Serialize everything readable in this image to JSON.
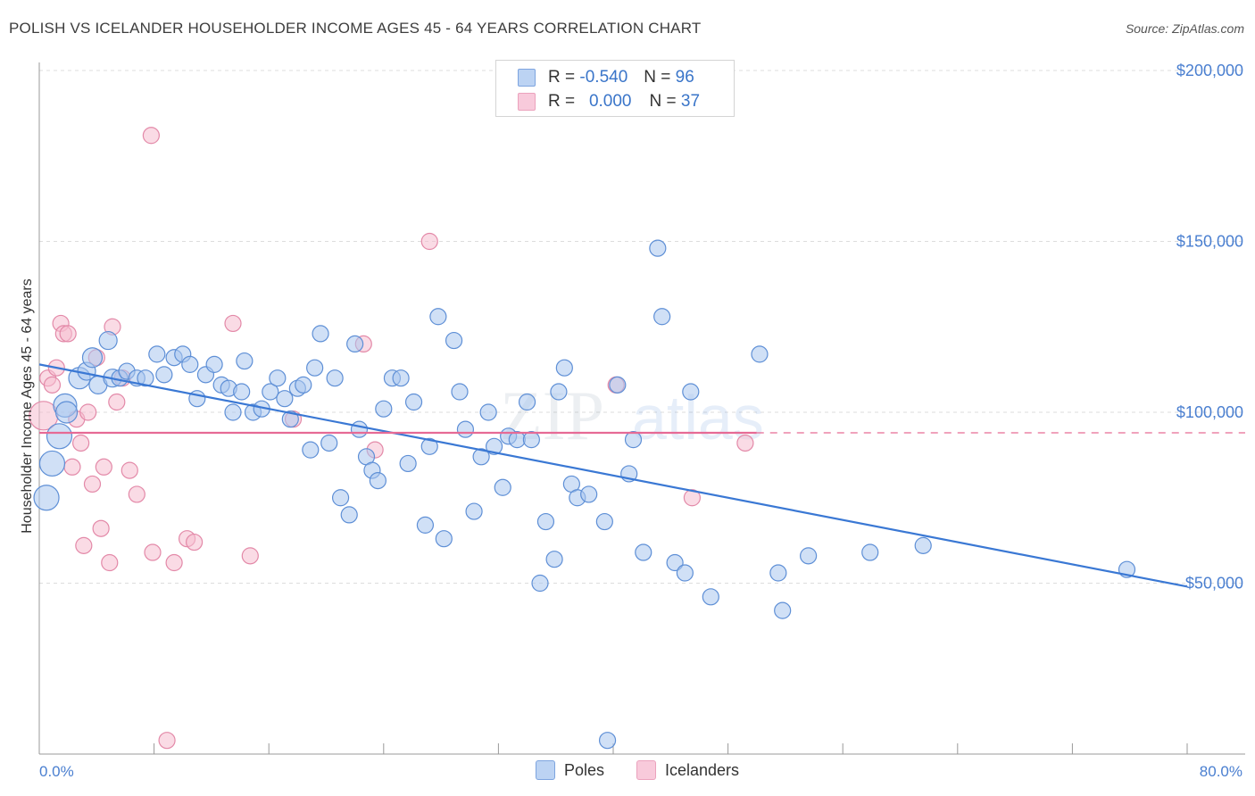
{
  "header": {
    "title": "POLISH VS ICELANDER HOUSEHOLDER INCOME AGES 45 - 64 YEARS CORRELATION CHART",
    "source_label": "Source: ZipAtlas.com"
  },
  "legend_top": {
    "rows": [
      {
        "r_label": "R =",
        "r_value": "-0.540",
        "n_label": "N =",
        "n_value": "96"
      },
      {
        "r_label": "R =",
        "r_value": "0.000",
        "n_label": "N =",
        "n_value": "37"
      }
    ]
  },
  "legend_bottom": {
    "poles": "Poles",
    "icelanders": "Icelanders"
  },
  "watermark": {
    "zip": "ZIP",
    "atlas": "atlas"
  },
  "colors": {
    "poles_fill": "#a9c6ef",
    "poles_stroke": "#5e8fd6",
    "poles_line": "#3a78d4",
    "ice_fill": "#f6bdd0",
    "ice_stroke": "#e389a8",
    "ice_line": "#e66a95"
  },
  "chart_data": {
    "type": "scatter",
    "title": "POLISH VS ICELANDER HOUSEHOLDER INCOME AGES 45 - 64 YEARS CORRELATION CHART",
    "xlabel": "",
    "ylabel": "Householder Income Ages 45 - 64 years",
    "xlim": [
      0,
      80
    ],
    "ylim": [
      0,
      210000
    ],
    "x_tick_labels": [
      "0.0%",
      "80.0%"
    ],
    "y_ticks": [
      50000,
      100000,
      150000,
      200000
    ],
    "y_tick_labels": [
      "$50,000",
      "$100,000",
      "$150,000",
      "$200,000"
    ],
    "grid": true,
    "series": [
      {
        "name": "Poles",
        "r": -0.54,
        "n": 96,
        "trend": {
          "x": [
            0,
            80
          ],
          "y": [
            114000,
            49000
          ]
        },
        "points": [
          [
            0.5,
            75000,
            14
          ],
          [
            0.9,
            85000,
            14
          ],
          [
            1.4,
            93000,
            14
          ],
          [
            1.8,
            102000,
            13
          ],
          [
            1.9,
            100000,
            12
          ],
          [
            2.8,
            110000,
            12
          ],
          [
            3.3,
            112000,
            10
          ],
          [
            3.7,
            116000,
            11
          ],
          [
            4.1,
            108000,
            10
          ],
          [
            4.8,
            121000,
            10
          ],
          [
            5.1,
            110000,
            10
          ],
          [
            5.6,
            110000,
            9
          ],
          [
            6.1,
            112000,
            9
          ],
          [
            6.8,
            110000,
            9
          ],
          [
            7.4,
            110000,
            9
          ],
          [
            8.2,
            117000,
            9
          ],
          [
            8.7,
            111000,
            9
          ],
          [
            9.4,
            116000,
            9
          ],
          [
            10.0,
            117000,
            9
          ],
          [
            10.5,
            114000,
            9
          ],
          [
            11.0,
            104000,
            9
          ],
          [
            11.6,
            111000,
            9
          ],
          [
            12.2,
            114000,
            9
          ],
          [
            12.7,
            108000,
            9
          ],
          [
            13.2,
            107000,
            9
          ],
          [
            13.5,
            100000,
            9
          ],
          [
            14.1,
            106000,
            9
          ],
          [
            14.3,
            115000,
            9
          ],
          [
            14.9,
            100000,
            9
          ],
          [
            15.5,
            101000,
            9
          ],
          [
            16.1,
            106000,
            9
          ],
          [
            16.6,
            110000,
            9
          ],
          [
            17.1,
            104000,
            9
          ],
          [
            17.5,
            98000,
            9
          ],
          [
            18.0,
            107000,
            9
          ],
          [
            18.4,
            108000,
            9
          ],
          [
            18.9,
            89000,
            9
          ],
          [
            19.2,
            113000,
            9
          ],
          [
            19.6,
            123000,
            9
          ],
          [
            20.2,
            91000,
            9
          ],
          [
            20.6,
            110000,
            9
          ],
          [
            21.0,
            75000,
            9
          ],
          [
            21.6,
            70000,
            9
          ],
          [
            22.0,
            120000,
            9
          ],
          [
            22.3,
            95000,
            9
          ],
          [
            22.8,
            87000,
            9
          ],
          [
            23.2,
            83000,
            9
          ],
          [
            23.6,
            80000,
            9
          ],
          [
            24.0,
            101000,
            9
          ],
          [
            24.6,
            110000,
            9
          ],
          [
            25.2,
            110000,
            9
          ],
          [
            25.7,
            85000,
            9
          ],
          [
            26.1,
            103000,
            9
          ],
          [
            26.9,
            67000,
            9
          ],
          [
            27.2,
            90000,
            9
          ],
          [
            27.8,
            128000,
            9
          ],
          [
            28.2,
            63000,
            9
          ],
          [
            28.9,
            121000,
            9
          ],
          [
            29.3,
            106000,
            9
          ],
          [
            29.7,
            95000,
            9
          ],
          [
            30.3,
            71000,
            9
          ],
          [
            30.8,
            87000,
            9
          ],
          [
            31.3,
            100000,
            9
          ],
          [
            31.7,
            90000,
            9
          ],
          [
            32.3,
            78000,
            9
          ],
          [
            32.7,
            93000,
            9
          ],
          [
            33.3,
            92000,
            9
          ],
          [
            34.0,
            103000,
            9
          ],
          [
            34.3,
            92000,
            9
          ],
          [
            34.9,
            50000,
            9
          ],
          [
            35.3,
            68000,
            9
          ],
          [
            35.9,
            57000,
            9
          ],
          [
            36.2,
            106000,
            9
          ],
          [
            36.6,
            113000,
            9
          ],
          [
            37.1,
            79000,
            9
          ],
          [
            37.5,
            75000,
            9
          ],
          [
            38.3,
            76000,
            9
          ],
          [
            39.4,
            68000,
            9
          ],
          [
            40.3,
            108000,
            9
          ],
          [
            41.1,
            82000,
            9
          ],
          [
            41.4,
            92000,
            9
          ],
          [
            42.1,
            59000,
            9
          ],
          [
            43.1,
            148000,
            9
          ],
          [
            43.4,
            128000,
            9
          ],
          [
            44.3,
            56000,
            9
          ],
          [
            45.0,
            53000,
            9
          ],
          [
            45.4,
            106000,
            9
          ],
          [
            46.8,
            46000,
            9
          ],
          [
            50.2,
            117000,
            9
          ],
          [
            51.5,
            53000,
            9
          ],
          [
            51.8,
            42000,
            9
          ],
          [
            53.6,
            58000,
            9
          ],
          [
            57.9,
            59000,
            9
          ],
          [
            61.6,
            61000,
            9
          ],
          [
            75.8,
            54000,
            9
          ],
          [
            39.6,
            4000,
            9
          ]
        ]
      },
      {
        "name": "Icelanders",
        "r": 0.0,
        "n": 37,
        "trend": {
          "x": [
            0,
            50
          ],
          "y": [
            94000,
            94000
          ]
        },
        "dashed_extension": {
          "x": [
            50,
            80
          ],
          "y": [
            94000,
            94000
          ]
        },
        "points": [
          [
            0.3,
            99000,
            16
          ],
          [
            0.6,
            110000,
            9
          ],
          [
            0.9,
            108000,
            9
          ],
          [
            1.2,
            113000,
            9
          ],
          [
            1.5,
            126000,
            9
          ],
          [
            1.7,
            123000,
            9
          ],
          [
            2.0,
            123000,
            9
          ],
          [
            2.3,
            84000,
            9
          ],
          [
            2.6,
            98000,
            9
          ],
          [
            2.9,
            91000,
            9
          ],
          [
            3.1,
            61000,
            9
          ],
          [
            3.4,
            100000,
            9
          ],
          [
            3.7,
            79000,
            9
          ],
          [
            4.0,
            116000,
            9
          ],
          [
            4.3,
            66000,
            9
          ],
          [
            4.5,
            84000,
            9
          ],
          [
            4.9,
            56000,
            9
          ],
          [
            5.1,
            125000,
            9
          ],
          [
            5.4,
            103000,
            9
          ],
          [
            5.8,
            110000,
            9
          ],
          [
            6.3,
            83000,
            9
          ],
          [
            6.8,
            76000,
            9
          ],
          [
            7.8,
            181000,
            9
          ],
          [
            7.9,
            59000,
            9
          ],
          [
            8.9,
            4000,
            9
          ],
          [
            9.4,
            56000,
            9
          ],
          [
            10.3,
            63000,
            9
          ],
          [
            10.8,
            62000,
            9
          ],
          [
            13.5,
            126000,
            9
          ],
          [
            14.7,
            58000,
            9
          ],
          [
            17.7,
            98000,
            9
          ],
          [
            22.6,
            120000,
            9
          ],
          [
            23.4,
            89000,
            9
          ],
          [
            27.2,
            150000,
            9
          ],
          [
            40.2,
            108000,
            9
          ],
          [
            45.5,
            75000,
            9
          ],
          [
            49.2,
            91000,
            9
          ]
        ]
      }
    ]
  }
}
